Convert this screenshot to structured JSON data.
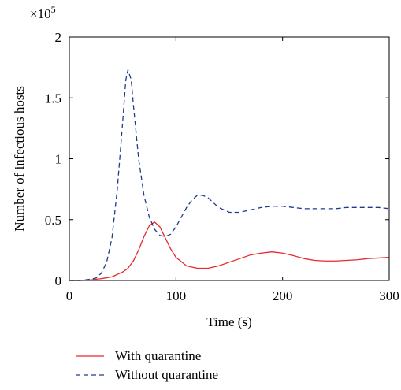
{
  "chart_data": {
    "type": "line",
    "exponent_prefix": "×10",
    "exponent_power": "5",
    "xlabel": "Time (s)",
    "ylabel": "Number of infectious hosts",
    "xlim": [
      0,
      300
    ],
    "ylim": [
      0,
      2
    ],
    "x_ticks": [
      "0",
      "100",
      "200",
      "300"
    ],
    "y_ticks": [
      "0",
      "0.5",
      "1",
      "1.5",
      "2"
    ],
    "grid": false,
    "legend_position": "below",
    "series": [
      {
        "name": "With quarantine",
        "color": "#e8282b",
        "dash": "solid",
        "x": [
          0,
          10,
          20,
          30,
          40,
          50,
          55,
          60,
          65,
          70,
          75,
          80,
          85,
          90,
          95,
          100,
          110,
          120,
          130,
          140,
          150,
          160,
          170,
          180,
          190,
          200,
          210,
          220,
          230,
          240,
          250,
          260,
          270,
          280,
          290,
          300
        ],
        "y": [
          0,
          0,
          0.005,
          0.015,
          0.03,
          0.07,
          0.1,
          0.16,
          0.25,
          0.36,
          0.45,
          0.48,
          0.44,
          0.35,
          0.26,
          0.19,
          0.12,
          0.1,
          0.1,
          0.12,
          0.15,
          0.18,
          0.21,
          0.225,
          0.235,
          0.225,
          0.205,
          0.18,
          0.165,
          0.16,
          0.16,
          0.165,
          0.17,
          0.18,
          0.185,
          0.19
        ]
      },
      {
        "name": "Without quarantine",
        "color": "#1f3b8f",
        "dash": "dashed",
        "x": [
          0,
          10,
          20,
          25,
          30,
          35,
          40,
          45,
          50,
          53,
          55,
          58,
          60,
          65,
          70,
          75,
          80,
          85,
          90,
          95,
          100,
          105,
          110,
          115,
          120,
          125,
          130,
          135,
          140,
          150,
          160,
          170,
          180,
          190,
          200,
          210,
          220,
          230,
          240,
          250,
          260,
          270,
          280,
          290,
          300
        ],
        "y": [
          0,
          0,
          0.01,
          0.02,
          0.06,
          0.15,
          0.35,
          0.75,
          1.3,
          1.65,
          1.73,
          1.65,
          1.45,
          1.0,
          0.7,
          0.52,
          0.42,
          0.37,
          0.36,
          0.38,
          0.44,
          0.52,
          0.6,
          0.66,
          0.7,
          0.7,
          0.68,
          0.64,
          0.6,
          0.56,
          0.56,
          0.58,
          0.6,
          0.61,
          0.61,
          0.6,
          0.59,
          0.59,
          0.59,
          0.59,
          0.6,
          0.6,
          0.6,
          0.6,
          0.59
        ]
      }
    ]
  }
}
